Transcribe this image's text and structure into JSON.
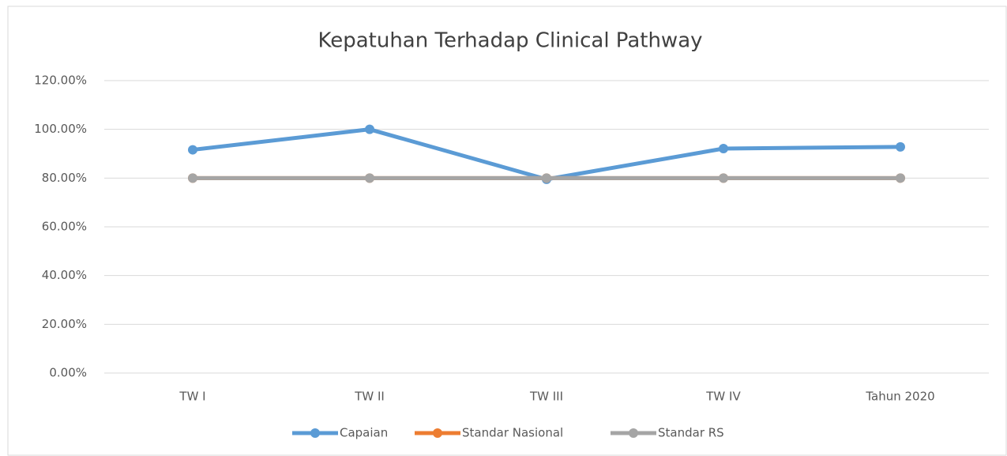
{
  "chart_data": {
    "type": "line",
    "title": "Kepatuhan Terhadap Clinical Pathway",
    "categories": [
      "TW I",
      "TW II",
      "TW III",
      "TW IV",
      "Tahun 2020"
    ],
    "series": [
      {
        "name": "Capaian",
        "color": "#5b9bd5",
        "values": [
          91.6,
          100,
          79.5,
          92.1,
          92.8
        ]
      },
      {
        "name": "Standar Nasional",
        "color": "#ed7d31",
        "values": [
          80,
          80,
          80,
          80,
          80
        ]
      },
      {
        "name": "Standar RS",
        "color": "#a5a5a5",
        "values": [
          80,
          80,
          80,
          80,
          80
        ]
      }
    ],
    "ylim": [
      0,
      120
    ],
    "yticks": [
      {
        "value": 0,
        "label": "0.00%"
      },
      {
        "value": 20,
        "label": "20.00%"
      },
      {
        "value": 40,
        "label": "40.00%"
      },
      {
        "value": 60,
        "label": "60.00%"
      },
      {
        "value": 80,
        "label": "80.00%"
      },
      {
        "value": 100,
        "label": "100.00%"
      },
      {
        "value": 120,
        "label": "120.00%"
      }
    ],
    "grid": true,
    "legend": "bottom"
  }
}
